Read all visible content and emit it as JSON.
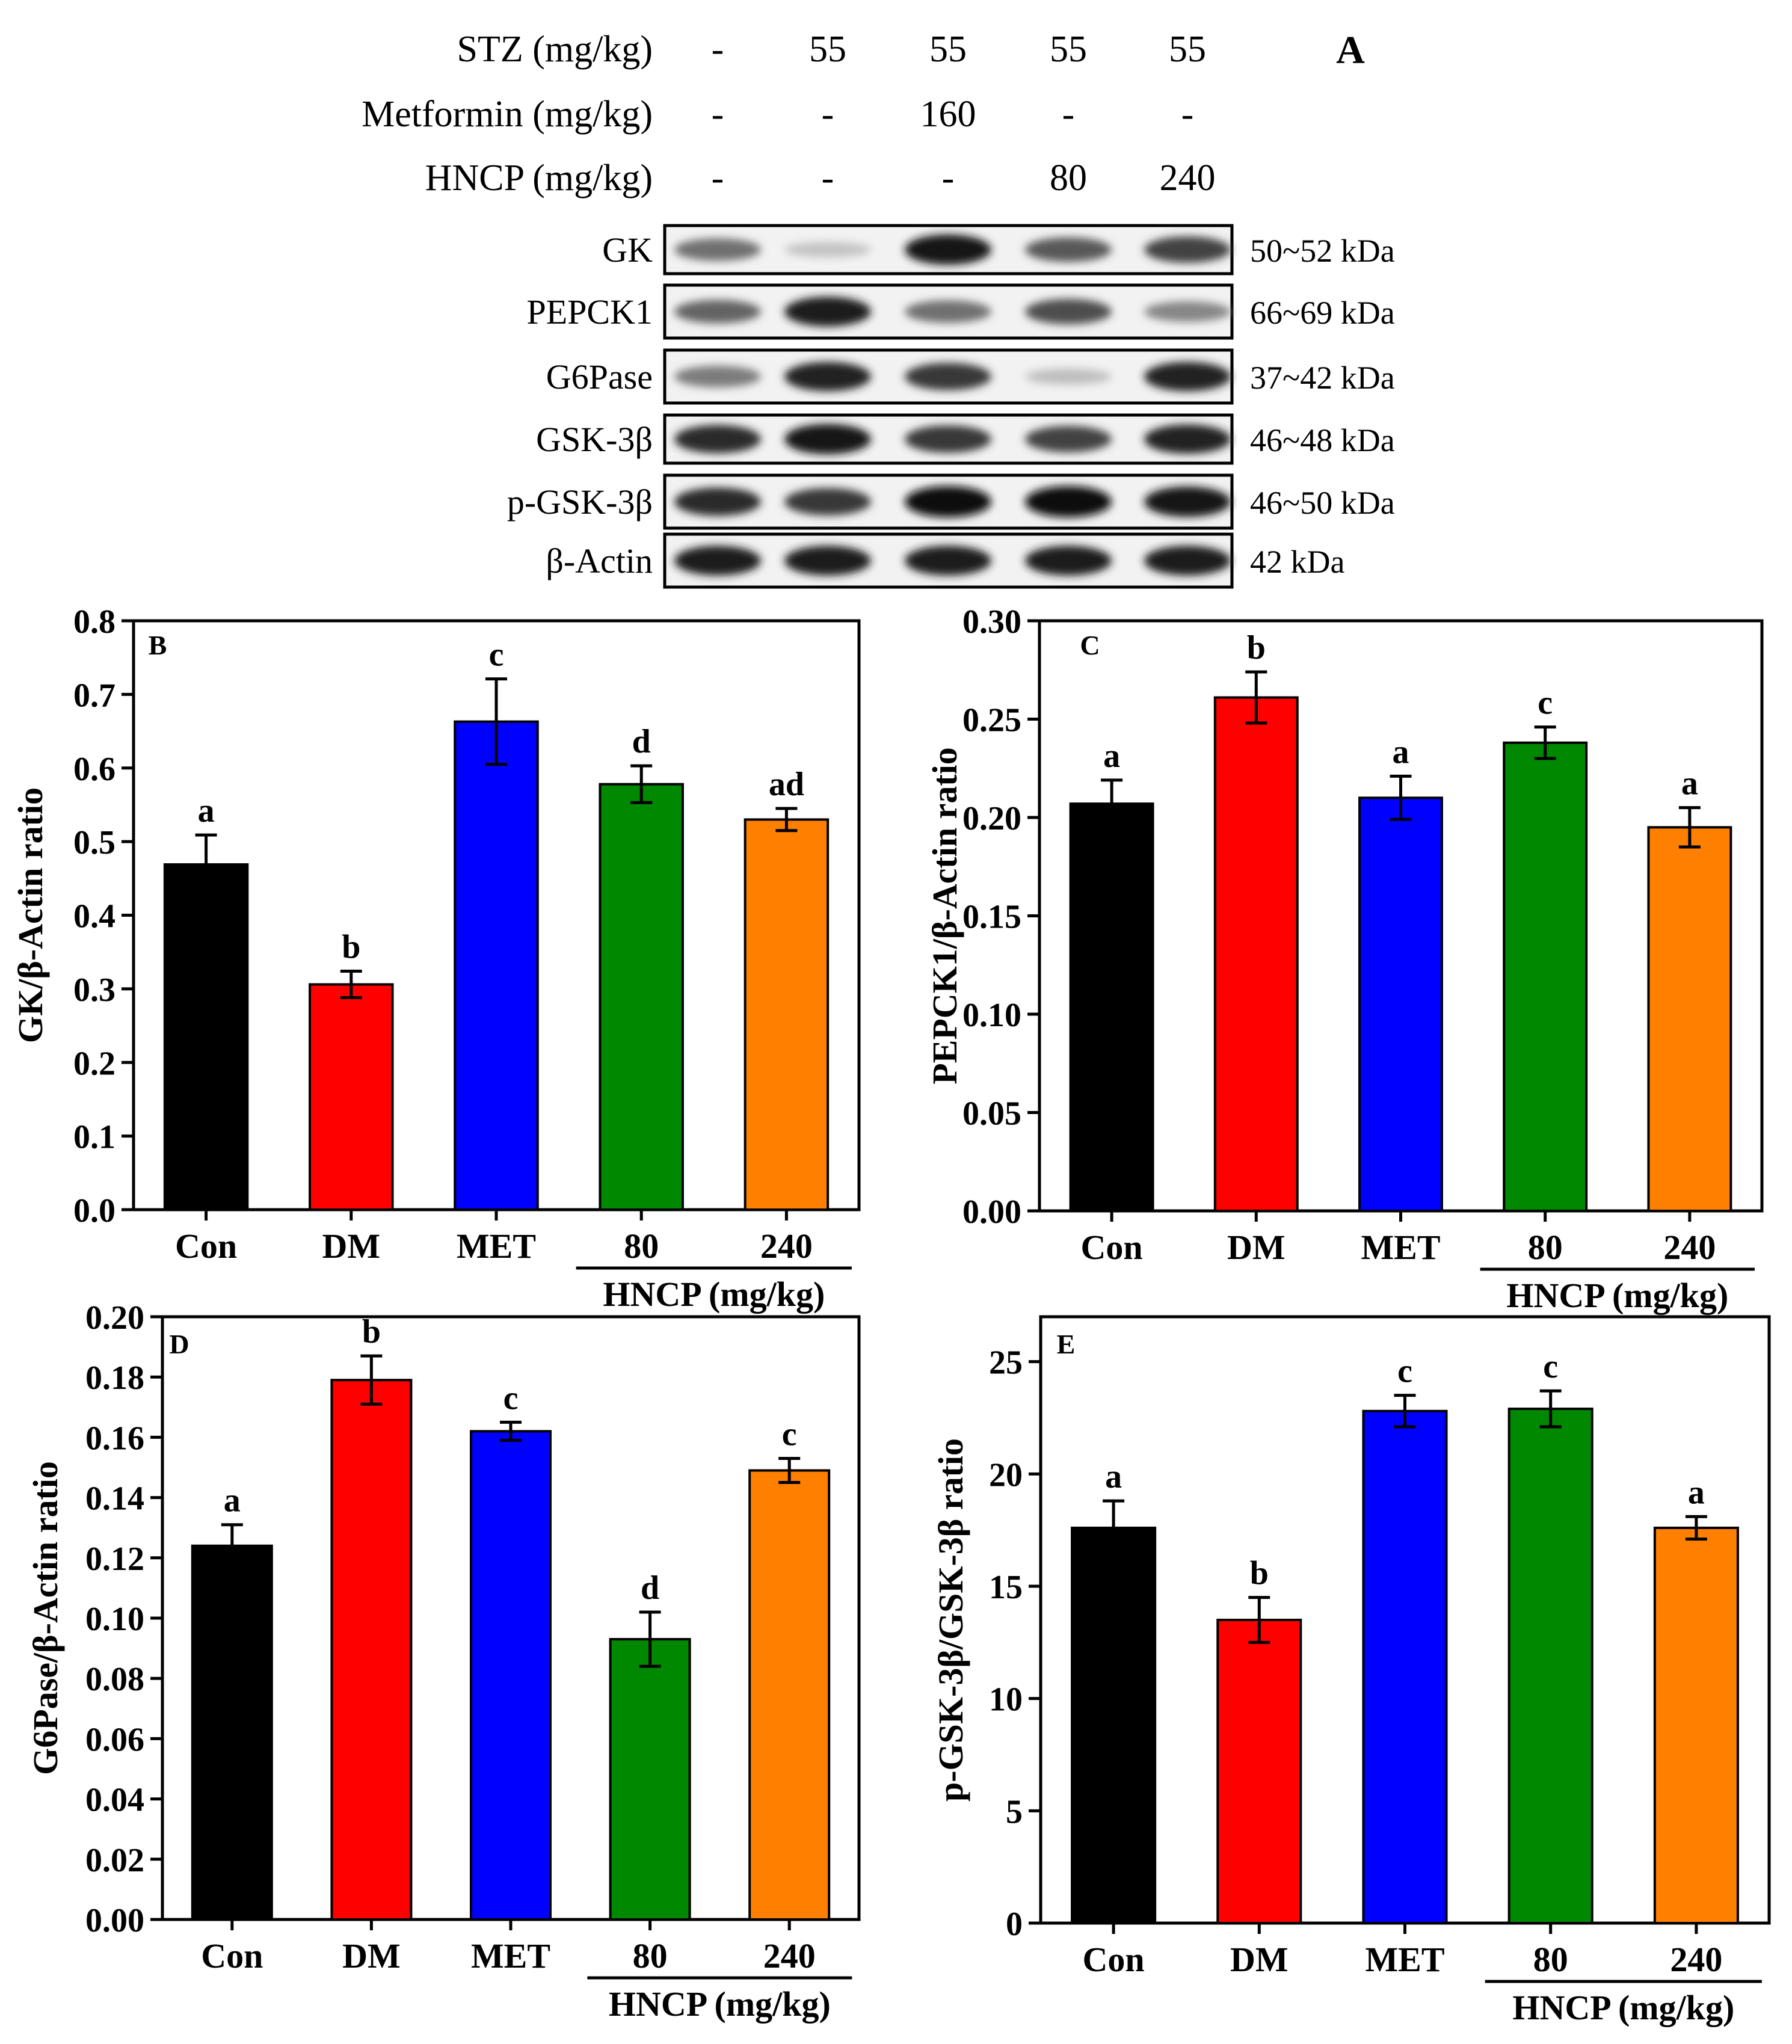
{
  "blot_panel": {
    "label": "A",
    "treatments": [
      {
        "name": "STZ (mg/kg)",
        "values": [
          "-",
          "55",
          "55",
          "55",
          "55"
        ]
      },
      {
        "name": "Metformin (mg/kg)",
        "values": [
          "-",
          "-",
          "160",
          "-",
          "-"
        ]
      },
      {
        "name": "HNCP (mg/kg)",
        "values": [
          "-",
          "-",
          "-",
          "80",
          "240"
        ]
      }
    ],
    "rows": [
      {
        "protein": "GK",
        "kda": "50~52 kDa",
        "intensity": [
          0.55,
          0.18,
          0.95,
          0.65,
          0.75
        ]
      },
      {
        "protein": "PEPCK1",
        "kda": "66~69 kDa",
        "intensity": [
          0.6,
          0.92,
          0.55,
          0.7,
          0.45
        ]
      },
      {
        "protein": "G6Pase",
        "kda": "37~42 kDa",
        "intensity": [
          0.5,
          0.9,
          0.8,
          0.2,
          0.9
        ]
      },
      {
        "protein": "GSK-3β",
        "kda": "46~48 kDa",
        "intensity": [
          0.85,
          0.95,
          0.8,
          0.75,
          0.9
        ]
      },
      {
        "protein": "p-GSK-3β",
        "kda": "46~50 kDa",
        "intensity": [
          0.85,
          0.8,
          1.0,
          1.0,
          0.95
        ]
      },
      {
        "protein": "β-Actin",
        "kda": "42 kDa",
        "intensity": [
          0.92,
          0.92,
          0.92,
          0.92,
          0.92
        ]
      }
    ]
  },
  "colors": {
    "Con": "#000000",
    "DM": "#ff0000",
    "MET": "#0000ff",
    "80": "#008800",
    "240": "#ff8000"
  },
  "chart_data": [
    {
      "panel": "B",
      "type": "bar",
      "categories": [
        "Con",
        "DM",
        "MET",
        "80",
        "240"
      ],
      "values": [
        0.469,
        0.306,
        0.663,
        0.578,
        0.53
      ],
      "errors": [
        0.04,
        0.018,
        0.058,
        0.025,
        0.015
      ],
      "letters": [
        "a",
        "b",
        "c",
        "d",
        "ad"
      ],
      "ylabel": "GK/β-Actin ratio",
      "ylim": [
        0,
        0.8
      ],
      "yticks": [
        "0.0",
        "0.1",
        "0.2",
        "0.3",
        "0.4",
        "0.5",
        "0.6",
        "0.7",
        "0.8"
      ],
      "group_label": "HNCP (mg/kg)"
    },
    {
      "panel": "C",
      "type": "bar",
      "categories": [
        "Con",
        "DM",
        "MET",
        "80",
        "240"
      ],
      "values": [
        0.207,
        0.261,
        0.21,
        0.238,
        0.195
      ],
      "errors": [
        0.012,
        0.013,
        0.011,
        0.008,
        0.01
      ],
      "letters": [
        "a",
        "b",
        "a",
        "c",
        "a"
      ],
      "ylabel": "PEPCK1/β-Actin ratio",
      "ylim": [
        0,
        0.3
      ],
      "yticks": [
        "0.00",
        "0.05",
        "0.10",
        "0.15",
        "0.20",
        "0.25",
        "0.30"
      ],
      "group_label": "HNCP (mg/kg)"
    },
    {
      "panel": "D",
      "type": "bar",
      "categories": [
        "Con",
        "DM",
        "MET",
        "80",
        "240"
      ],
      "values": [
        0.124,
        0.179,
        0.162,
        0.093,
        0.149
      ],
      "errors": [
        0.007,
        0.008,
        0.003,
        0.009,
        0.004
      ],
      "letters": [
        "a",
        "b",
        "c",
        "d",
        "c"
      ],
      "ylabel": "G6Pase/β-Actin ratio",
      "ylim": [
        0,
        0.2
      ],
      "yticks": [
        "0.00",
        "0.02",
        "0.04",
        "0.06",
        "0.08",
        "0.10",
        "0.12",
        "0.14",
        "0.16",
        "0.18",
        "0.20"
      ],
      "group_label": "HNCP (mg/kg)"
    },
    {
      "panel": "E",
      "type": "bar",
      "categories": [
        "Con",
        "DM",
        "MET",
        "80",
        "240"
      ],
      "values": [
        17.6,
        13.5,
        22.8,
        22.9,
        17.6
      ],
      "errors": [
        1.2,
        1.0,
        0.7,
        0.8,
        0.5
      ],
      "letters": [
        "a",
        "b",
        "c",
        "c",
        "a"
      ],
      "ylabel": "p-GSK-3β/GSK-3β ratio",
      "ylim": [
        0,
        27
      ],
      "yticks": [
        "0",
        "5",
        "10",
        "15",
        "20",
        "25"
      ],
      "group_label": "HNCP (mg/kg)"
    }
  ]
}
